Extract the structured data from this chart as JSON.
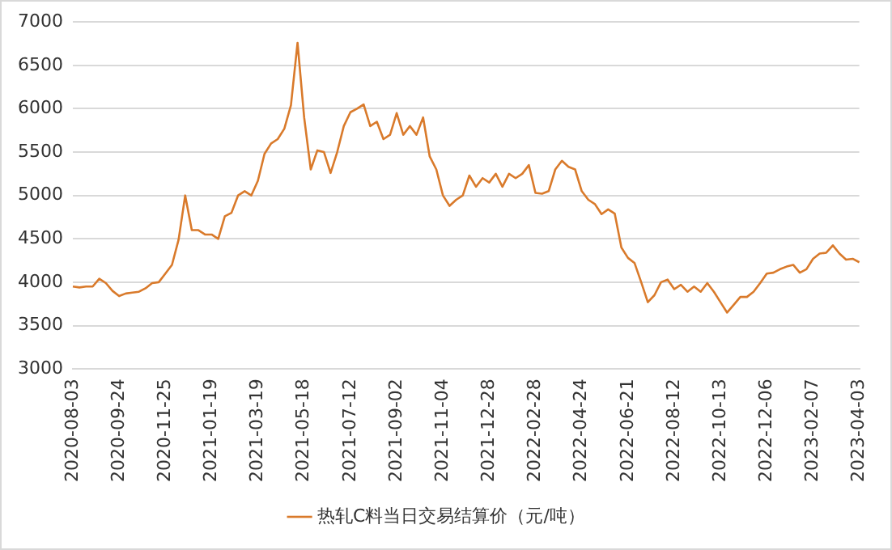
{
  "chart_data": {
    "type": "line",
    "categories": [
      "2020-08-03",
      null,
      null,
      null,
      null,
      null,
      null,
      "2020-09-24",
      null,
      null,
      null,
      null,
      null,
      null,
      "2020-11-25",
      null,
      null,
      null,
      null,
      null,
      null,
      "2021-01-19",
      null,
      null,
      null,
      null,
      null,
      null,
      "2021-03-19",
      null,
      null,
      null,
      null,
      null,
      null,
      "2021-05-18",
      null,
      null,
      null,
      null,
      null,
      null,
      "2021-07-12",
      null,
      null,
      null,
      null,
      null,
      null,
      "2021-09-02",
      null,
      null,
      null,
      null,
      null,
      null,
      "2021-11-04",
      null,
      null,
      null,
      null,
      null,
      null,
      "2021-12-28",
      null,
      null,
      null,
      null,
      null,
      null,
      "2022-02-28",
      null,
      null,
      null,
      null,
      null,
      null,
      "2022-04-24",
      null,
      null,
      null,
      null,
      null,
      null,
      "2022-06-21",
      null,
      null,
      null,
      null,
      null,
      null,
      "2022-08-12",
      null,
      null,
      null,
      null,
      null,
      null,
      "2022-10-13",
      null,
      null,
      null,
      null,
      null,
      null,
      "2022-12-06",
      null,
      null,
      null,
      null,
      null,
      null,
      "2023-02-07",
      null,
      null,
      null,
      null,
      null,
      null,
      "2023-04-03"
    ],
    "series": [
      {
        "name": "热轧C料当日交易结算价（元/吨）",
        "color": "#d97a2b",
        "values": [
          3950,
          3940,
          3950,
          3950,
          4040,
          3990,
          3900,
          3840,
          3870,
          3880,
          3890,
          3930,
          3990,
          4000,
          4100,
          4200,
          4490,
          5000,
          4600,
          4600,
          4550,
          4550,
          4500,
          4760,
          4800,
          5000,
          5050,
          5000,
          5170,
          5480,
          5600,
          5650,
          5770,
          6040,
          6760,
          5900,
          5300,
          5520,
          5500,
          5260,
          5500,
          5800,
          5960,
          6000,
          6050,
          5800,
          5850,
          5650,
          5700,
          5950,
          5700,
          5800,
          5700,
          5900,
          5450,
          5300,
          5000,
          4880,
          4950,
          5000,
          5230,
          5100,
          5200,
          5150,
          5250,
          5100,
          5250,
          5200,
          5250,
          5350,
          5030,
          5020,
          5050,
          5300,
          5400,
          5330,
          5300,
          5050,
          4950,
          4900,
          4785,
          4840,
          4790,
          4400,
          4280,
          4220,
          4000,
          3770,
          3850,
          4000,
          4030,
          3920,
          3970,
          3890,
          3950,
          3890,
          3990,
          3890,
          3770,
          3650,
          3740,
          3830,
          3830,
          3890,
          3990,
          4100,
          4110,
          4150,
          4180,
          4200,
          4110,
          4150,
          4270,
          4330,
          4340,
          4425,
          4330,
          4260,
          4270,
          4230
        ]
      }
    ],
    "ylim": [
      3000,
      7000
    ],
    "yticks": [
      3000,
      3500,
      4000,
      4500,
      5000,
      5500,
      6000,
      6500,
      7000
    ],
    "grid": "y",
    "legend": "bottom",
    "marker": "none",
    "line_style": "solid"
  }
}
